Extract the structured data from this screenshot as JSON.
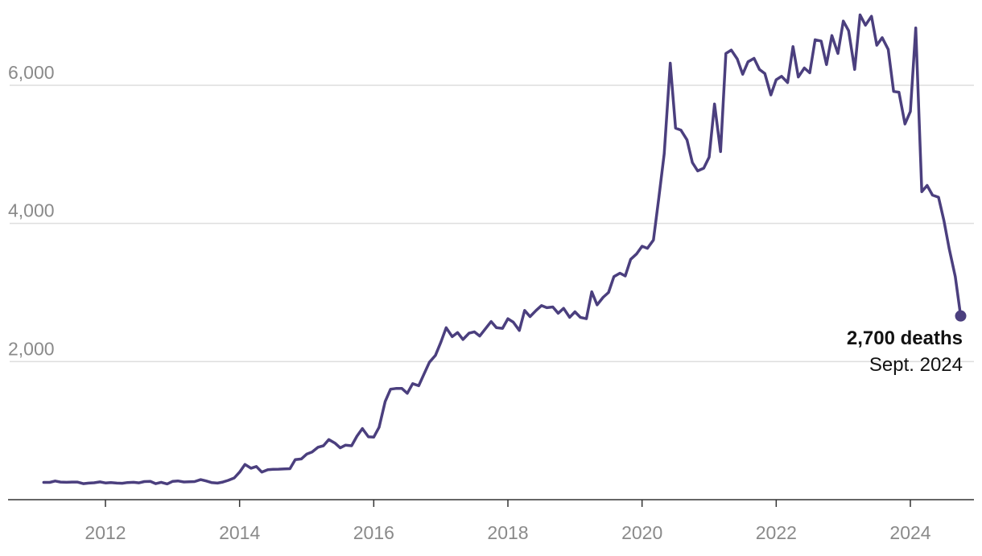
{
  "chart_data": {
    "type": "line",
    "title": "",
    "xlabel": "",
    "ylabel": "",
    "x_range": [
      2011.0,
      2024.9
    ],
    "y_range": [
      0,
      6900
    ],
    "y_ticks": [
      {
        "value": 2000,
        "label": "2,000"
      },
      {
        "value": 4000,
        "label": "4,000"
      },
      {
        "value": 6000,
        "label": "6,000"
      }
    ],
    "x_ticks": [
      {
        "value": 2012,
        "label": "2012"
      },
      {
        "value": 2014,
        "label": "2014"
      },
      {
        "value": 2016,
        "label": "2016"
      },
      {
        "value": 2018,
        "label": "2018"
      },
      {
        "value": 2020,
        "label": "2020"
      },
      {
        "value": 2022,
        "label": "2022"
      },
      {
        "value": 2024,
        "label": "2024"
      }
    ],
    "grid": true,
    "series": [
      {
        "color": "#4b3f7e",
        "points": [
          [
            2011.08,
            250
          ],
          [
            2011.17,
            250
          ],
          [
            2011.25,
            270
          ],
          [
            2011.33,
            255
          ],
          [
            2011.42,
            252
          ],
          [
            2011.5,
            255
          ],
          [
            2011.58,
            255
          ],
          [
            2011.67,
            232
          ],
          [
            2011.75,
            240
          ],
          [
            2011.83,
            245
          ],
          [
            2011.92,
            258
          ],
          [
            2012.0,
            242
          ],
          [
            2012.08,
            248
          ],
          [
            2012.17,
            240
          ],
          [
            2012.25,
            238
          ],
          [
            2012.33,
            248
          ],
          [
            2012.42,
            252
          ],
          [
            2012.5,
            244
          ],
          [
            2012.58,
            262
          ],
          [
            2012.67,
            264
          ],
          [
            2012.75,
            232
          ],
          [
            2012.83,
            252
          ],
          [
            2012.92,
            228
          ],
          [
            2013.0,
            265
          ],
          [
            2013.08,
            272
          ],
          [
            2013.17,
            256
          ],
          [
            2013.25,
            260
          ],
          [
            2013.33,
            262
          ],
          [
            2013.42,
            290
          ],
          [
            2013.5,
            272
          ],
          [
            2013.58,
            248
          ],
          [
            2013.67,
            240
          ],
          [
            2013.75,
            255
          ],
          [
            2013.83,
            280
          ],
          [
            2013.92,
            315
          ],
          [
            2014.0,
            400
          ],
          [
            2014.08,
            510
          ],
          [
            2014.17,
            455
          ],
          [
            2014.25,
            480
          ],
          [
            2014.33,
            400
          ],
          [
            2014.42,
            435
          ],
          [
            2014.5,
            440
          ],
          [
            2014.58,
            442
          ],
          [
            2014.67,
            445
          ],
          [
            2014.75,
            448
          ],
          [
            2014.83,
            580
          ],
          [
            2014.92,
            590
          ],
          [
            2015.0,
            660
          ],
          [
            2015.08,
            690
          ],
          [
            2015.17,
            760
          ],
          [
            2015.25,
            780
          ],
          [
            2015.33,
            870
          ],
          [
            2015.42,
            820
          ],
          [
            2015.5,
            750
          ],
          [
            2015.58,
            790
          ],
          [
            2015.67,
            780
          ],
          [
            2015.75,
            920
          ],
          [
            2015.83,
            1030
          ],
          [
            2015.92,
            910
          ],
          [
            2016.0,
            905
          ],
          [
            2016.08,
            1050
          ],
          [
            2016.17,
            1420
          ],
          [
            2016.25,
            1600
          ],
          [
            2016.33,
            1610
          ],
          [
            2016.42,
            1610
          ],
          [
            2016.5,
            1540
          ],
          [
            2016.58,
            1680
          ],
          [
            2016.67,
            1650
          ],
          [
            2016.75,
            1820
          ],
          [
            2016.83,
            1990
          ],
          [
            2016.92,
            2090
          ],
          [
            2017.0,
            2280
          ],
          [
            2017.08,
            2490
          ],
          [
            2017.17,
            2360
          ],
          [
            2017.25,
            2420
          ],
          [
            2017.33,
            2320
          ],
          [
            2017.42,
            2410
          ],
          [
            2017.5,
            2430
          ],
          [
            2017.58,
            2370
          ],
          [
            2017.67,
            2480
          ],
          [
            2017.75,
            2580
          ],
          [
            2017.83,
            2490
          ],
          [
            2017.92,
            2480
          ],
          [
            2018.0,
            2620
          ],
          [
            2018.08,
            2570
          ],
          [
            2018.17,
            2450
          ],
          [
            2018.25,
            2740
          ],
          [
            2018.33,
            2650
          ],
          [
            2018.42,
            2740
          ],
          [
            2018.5,
            2810
          ],
          [
            2018.58,
            2780
          ],
          [
            2018.67,
            2790
          ],
          [
            2018.75,
            2700
          ],
          [
            2018.83,
            2770
          ],
          [
            2018.92,
            2640
          ],
          [
            2019.0,
            2720
          ],
          [
            2019.08,
            2640
          ],
          [
            2019.17,
            2620
          ],
          [
            2019.25,
            3010
          ],
          [
            2019.33,
            2820
          ],
          [
            2019.42,
            2930
          ],
          [
            2019.5,
            3000
          ],
          [
            2019.58,
            3230
          ],
          [
            2019.67,
            3280
          ],
          [
            2019.75,
            3240
          ],
          [
            2019.83,
            3480
          ],
          [
            2019.92,
            3560
          ],
          [
            2020.0,
            3670
          ],
          [
            2020.08,
            3640
          ],
          [
            2020.17,
            3760
          ],
          [
            2020.25,
            4370
          ],
          [
            2020.33,
            5010
          ],
          [
            2020.42,
            6320
          ],
          [
            2020.5,
            5380
          ],
          [
            2020.58,
            5350
          ],
          [
            2020.67,
            5210
          ],
          [
            2020.75,
            4880
          ],
          [
            2020.83,
            4760
          ],
          [
            2020.92,
            4800
          ],
          [
            2021.0,
            4960
          ],
          [
            2021.08,
            5730
          ],
          [
            2021.17,
            5040
          ],
          [
            2021.25,
            6460
          ],
          [
            2021.33,
            6510
          ],
          [
            2021.42,
            6380
          ],
          [
            2021.5,
            6160
          ],
          [
            2021.58,
            6340
          ],
          [
            2021.67,
            6390
          ],
          [
            2021.75,
            6230
          ],
          [
            2021.83,
            6170
          ],
          [
            2021.92,
            5860
          ],
          [
            2022.0,
            6080
          ],
          [
            2022.08,
            6130
          ],
          [
            2022.17,
            6040
          ],
          [
            2022.25,
            6560
          ],
          [
            2022.33,
            6120
          ],
          [
            2022.42,
            6250
          ],
          [
            2022.5,
            6180
          ],
          [
            2022.58,
            6660
          ],
          [
            2022.67,
            6640
          ],
          [
            2022.75,
            6300
          ],
          [
            2022.83,
            6720
          ],
          [
            2022.92,
            6460
          ],
          [
            2023.0,
            6930
          ],
          [
            2023.08,
            6790
          ],
          [
            2023.17,
            6230
          ],
          [
            2023.25,
            7020
          ],
          [
            2023.33,
            6870
          ],
          [
            2023.42,
            7000
          ],
          [
            2023.5,
            6580
          ],
          [
            2023.58,
            6690
          ],
          [
            2023.67,
            6520
          ],
          [
            2023.75,
            5910
          ],
          [
            2023.83,
            5900
          ],
          [
            2023.92,
            5440
          ],
          [
            2024.0,
            5620
          ],
          [
            2024.08,
            6830
          ],
          [
            2024.17,
            4460
          ],
          [
            2024.25,
            4550
          ],
          [
            2024.33,
            4410
          ],
          [
            2024.42,
            4380
          ],
          [
            2024.5,
            4040
          ],
          [
            2024.58,
            3630
          ],
          [
            2024.67,
            3230
          ],
          [
            2024.75,
            2660
          ]
        ]
      }
    ],
    "annotation": {
      "value_label": "2,700 deaths",
      "date_label": "Sept. 2024",
      "x": 2024.75,
      "y": 2660
    }
  }
}
